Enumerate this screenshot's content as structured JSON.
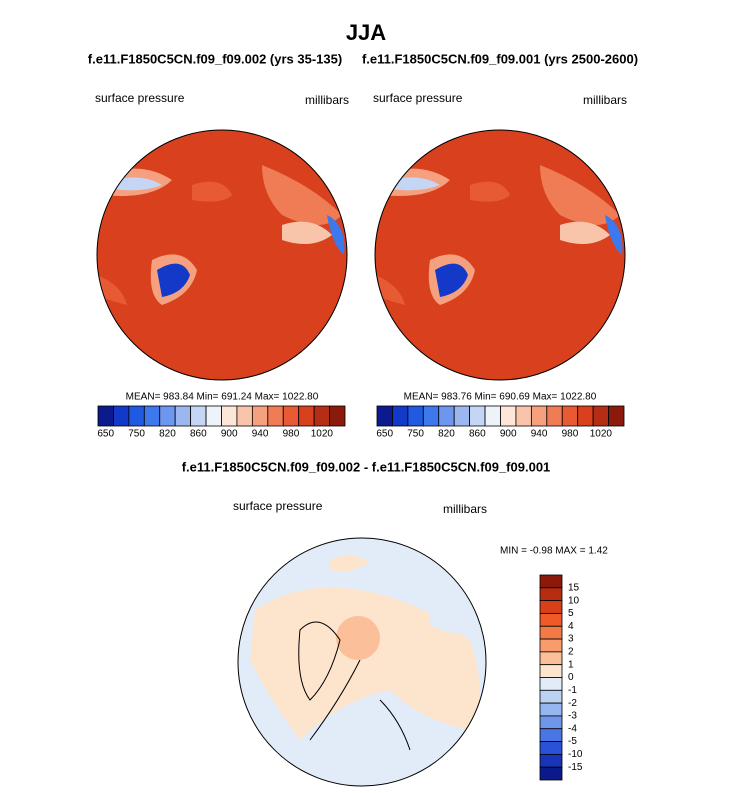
{
  "title": "JJA",
  "panels": [
    {
      "subtitle": "f.e11.F1850C5CN.f09_f09.002 (yrs 35-135)",
      "left_label": "surface pressure",
      "right_label": "millibars",
      "stats": "MEAN= 983.84  Min= 691.24  Max= 1022.80",
      "colorbar": {
        "labels": [
          650,
          750,
          820,
          860,
          900,
          940,
          980,
          1020
        ],
        "colors": [
          "#0b1a8c",
          "#1438c8",
          "#1f5ae0",
          "#3d78ec",
          "#6d96ee",
          "#9cb6f0",
          "#c5d6f4",
          "#eef3fa",
          "#fde6d8",
          "#f9c5aa",
          "#f5a07e",
          "#f07c55",
          "#e85a34",
          "#d8401e",
          "#b52d15",
          "#8c1a0c"
        ]
      }
    },
    {
      "subtitle": "f.e11.F1850C5CN.f09_f09.001 (yrs 2500-2600)",
      "left_label": "surface pressure",
      "right_label": "millibars",
      "stats": "MEAN= 983.76  Min= 690.69  Max= 1022.80",
      "colorbar": {
        "labels": [
          650,
          750,
          820,
          860,
          900,
          940,
          980,
          1020
        ],
        "colors": [
          "#0b1a8c",
          "#1438c8",
          "#1f5ae0",
          "#3d78ec",
          "#6d96ee",
          "#9cb6f0",
          "#c5d6f4",
          "#eef3fa",
          "#fde6d8",
          "#f9c5aa",
          "#f5a07e",
          "#f07c55",
          "#e85a34",
          "#d8401e",
          "#b52d15",
          "#8c1a0c"
        ]
      }
    }
  ],
  "diff": {
    "title": "f.e11.F1850C5CN.f09_f09.002 - f.e11.F1850C5CN.f09_f09.001",
    "left_label": "surface pressure",
    "right_label": "millibars",
    "stats": "MIN =  -0.98 MAX =   1.42",
    "colorbar": {
      "labels": [
        15,
        10,
        5,
        4,
        3,
        2,
        1,
        0,
        -1,
        -2,
        -3,
        -4,
        -5,
        -10,
        -15
      ],
      "colors": [
        "#8c1a0c",
        "#b82d12",
        "#d8401a",
        "#ee5a28",
        "#f47a45",
        "#f89c6c",
        "#fbc09a",
        "#fde4cc",
        "#e2ecf8",
        "#bcd2f2",
        "#95b6ee",
        "#6f96ea",
        "#4a76e4",
        "#2a52d8",
        "#1834b8",
        "#0b1a88"
      ]
    }
  }
}
